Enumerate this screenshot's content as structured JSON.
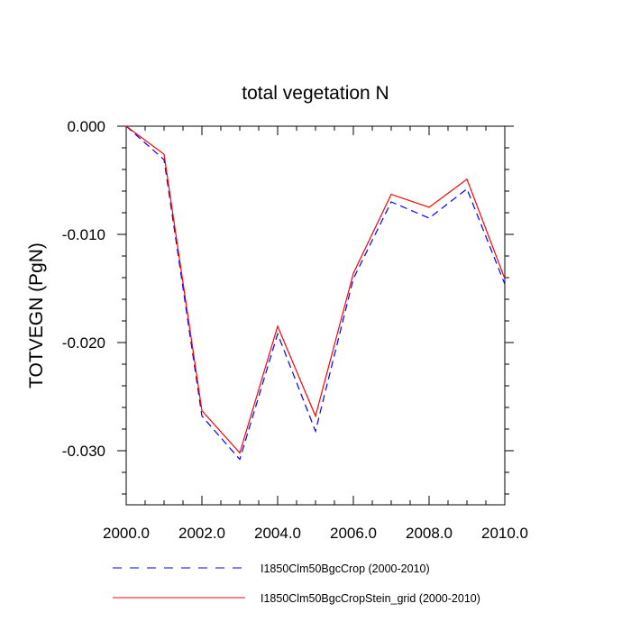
{
  "chart_data": {
    "type": "line",
    "title": "total vegetation N",
    "xlabel": "",
    "ylabel": "TOTVEGN  (PgN)",
    "xlim": [
      2000,
      2010
    ],
    "ylim": [
      -0.035,
      0.0
    ],
    "x_ticks": [
      2000,
      2002,
      2004,
      2006,
      2008,
      2010
    ],
    "x_tick_labels": [
      "2000.0",
      "2002.0",
      "2004.0",
      "2006.0",
      "2008.0",
      "2010.0"
    ],
    "y_ticks": [
      0.0,
      -0.01,
      -0.02,
      -0.03
    ],
    "y_tick_labels": [
      "0.000",
      "-0.010",
      "-0.020",
      "-0.030"
    ],
    "x": [
      2000,
      2001,
      2002,
      2003,
      2004,
      2005,
      2006,
      2007,
      2008,
      2009,
      2010
    ],
    "series": [
      {
        "name": "I1850Clm50BgcCrop (2000-2010)",
        "color": "#0000ff",
        "dash": "dashed",
        "values": [
          0.0,
          -0.0031,
          -0.0268,
          -0.0308,
          -0.0192,
          -0.0282,
          -0.0141,
          -0.007,
          -0.0085,
          -0.0058,
          -0.0146
        ]
      },
      {
        "name": "I1850Clm50BgcCropStein_grid (2000-2010)",
        "color": "#ff0000",
        "dash": "solid",
        "values": [
          0.0,
          -0.0026,
          -0.0263,
          -0.0302,
          -0.0185,
          -0.0268,
          -0.0136,
          -0.0063,
          -0.0075,
          -0.0049,
          -0.0141
        ]
      }
    ],
    "legend_position": "bottom",
    "grid": false
  }
}
